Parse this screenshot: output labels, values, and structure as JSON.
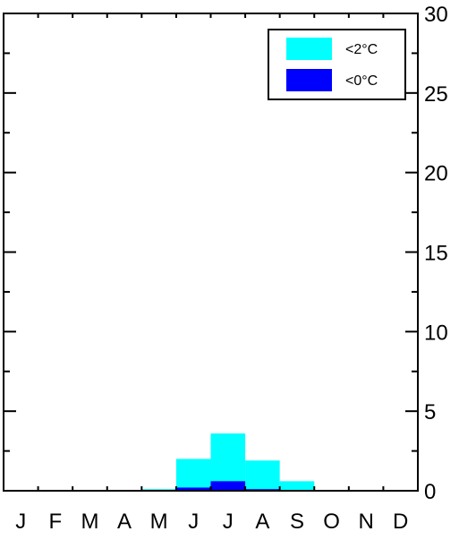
{
  "chart_data": {
    "type": "bar",
    "categories": [
      "J",
      "F",
      "M",
      "A",
      "M",
      "J",
      "J",
      "A",
      "S",
      "O",
      "N",
      "D"
    ],
    "series": [
      {
        "name": "<2°C",
        "color": "#00ffff",
        "values": [
          0,
          0,
          0,
          0,
          0.1,
          2.0,
          3.6,
          1.9,
          0.6,
          0.05,
          0,
          0
        ]
      },
      {
        "name": "<0°C",
        "color": "#0000ff",
        "values": [
          0,
          0,
          0,
          0,
          0,
          0.2,
          0.6,
          0.1,
          0,
          0,
          0,
          0
        ]
      }
    ],
    "ylim": [
      0,
      30
    ],
    "yticks": [
      "0",
      "5",
      "10",
      "15",
      "20",
      "25",
      "30"
    ],
    "yaxis_side": "right",
    "grid": false,
    "legend_position": "top-right",
    "title": "",
    "xlabel": "",
    "ylabel": ""
  }
}
